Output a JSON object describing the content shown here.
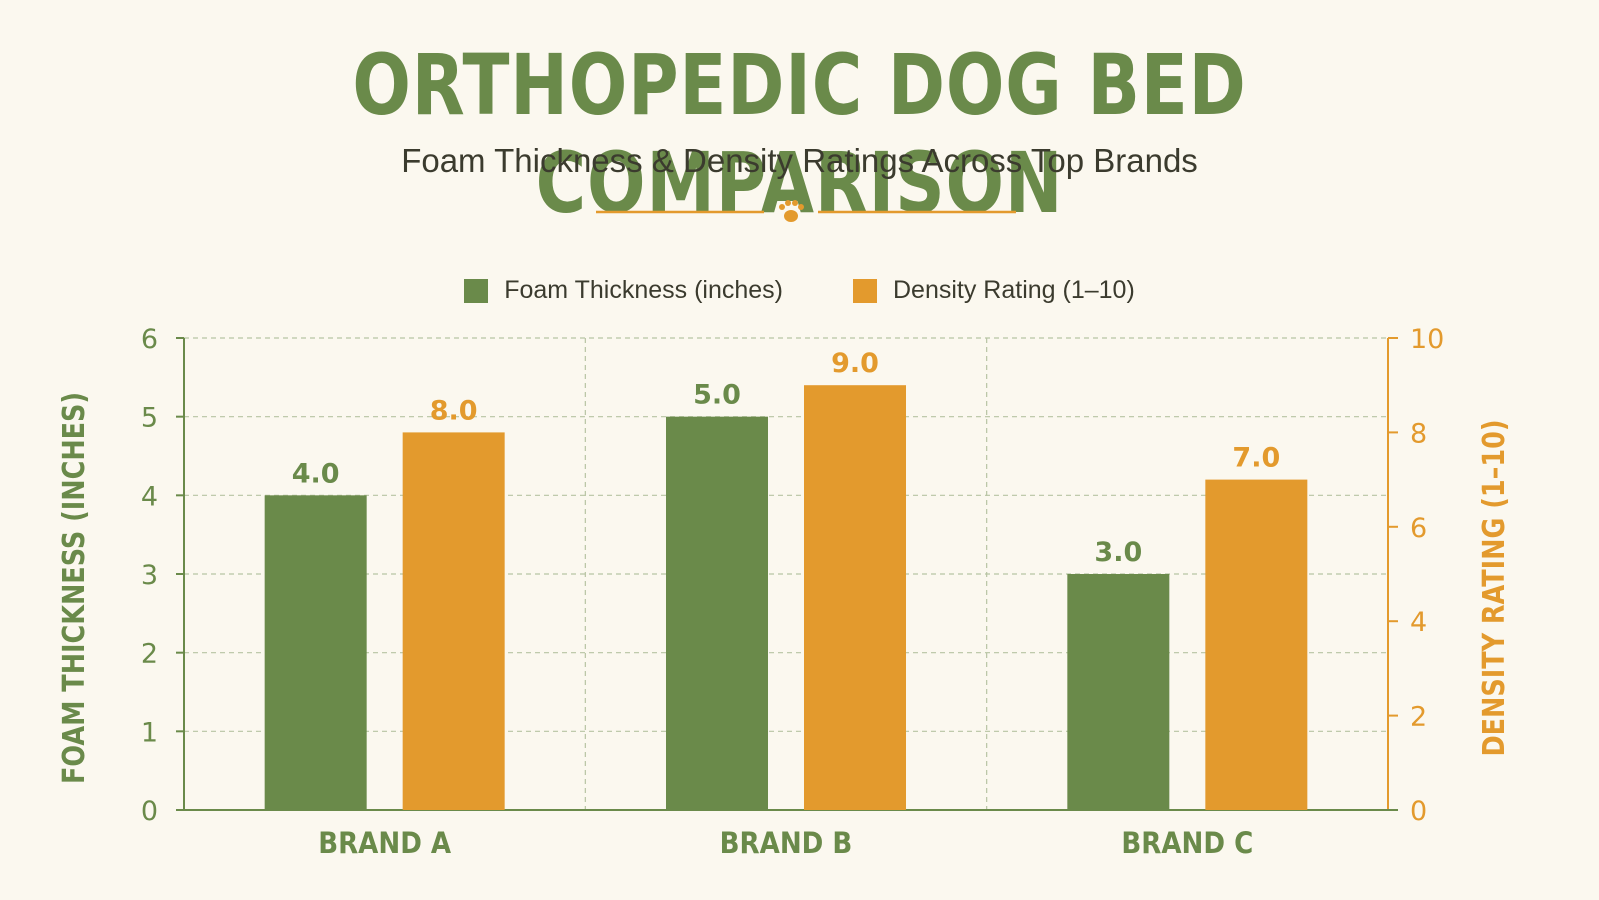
{
  "header": {
    "title": "ORTHOPEDIC DOG BED COMPARISON",
    "subtitle": "Foam Thickness & Density Ratings Across Top Brands",
    "divider_icon": "paw-icon"
  },
  "colors": {
    "green": "#6a8a4a",
    "orange": "#e39a2d",
    "background": "#fbf8ef",
    "text": "#3b3b2e",
    "grid": "#b7c4a3"
  },
  "chart_data": {
    "type": "bar",
    "categories": [
      "BRAND A",
      "BRAND B",
      "BRAND C"
    ],
    "series": [
      {
        "name": "Foam Thickness (inches)",
        "axis": "left",
        "values": [
          4.0,
          5.0,
          3.0
        ],
        "labels": [
          "4.0",
          "5.0",
          "3.0"
        ]
      },
      {
        "name": "Density Rating (1–10)",
        "axis": "right",
        "values": [
          8.0,
          9.0,
          7.0
        ],
        "labels": [
          "8.0",
          "9.0",
          "7.0"
        ]
      }
    ],
    "ylabel": "FOAM THICKNESS (INCHES)",
    "ylim": [
      0,
      6
    ],
    "yticks": [
      "0",
      "1",
      "2",
      "3",
      "4",
      "5",
      "6"
    ],
    "y2label": "DENSITY RATING (1–10)",
    "y2lim": [
      0,
      10
    ],
    "y2ticks": [
      "0",
      "2",
      "4",
      "6",
      "8",
      "10"
    ],
    "grid": true,
    "legend_position": "top-center"
  }
}
